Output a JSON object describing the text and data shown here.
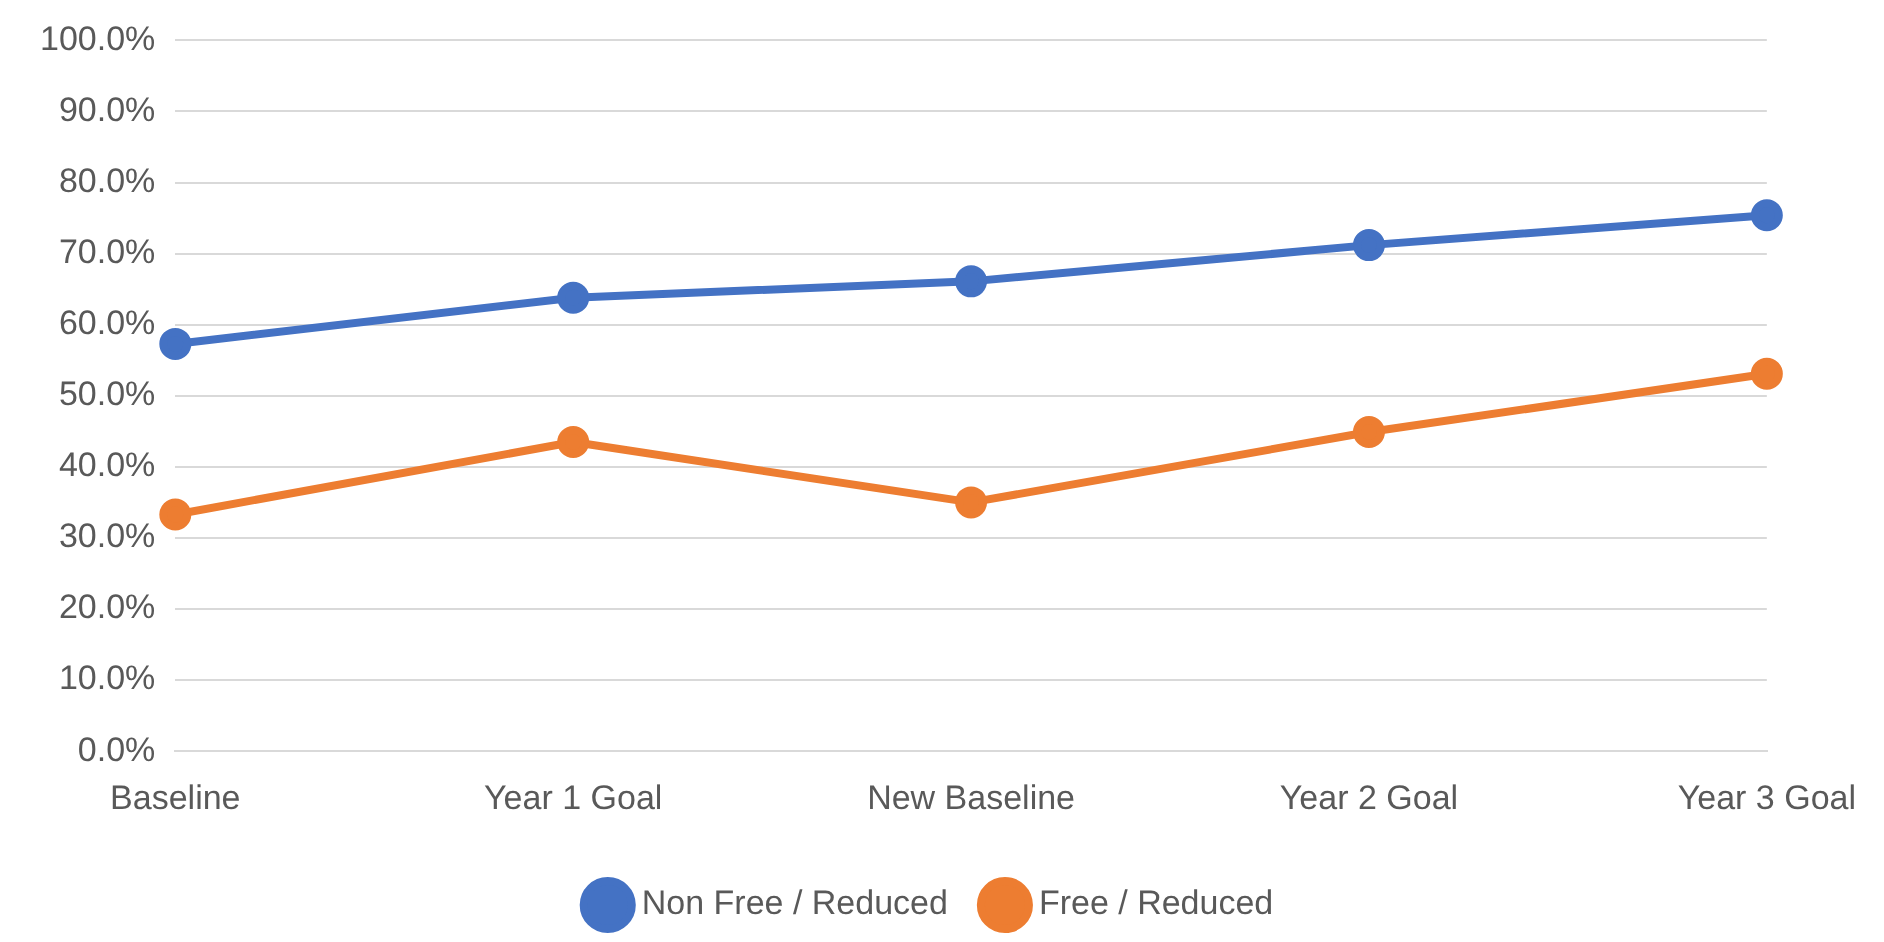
{
  "chart_data": {
    "type": "line",
    "categories": [
      "Baseline",
      "Year 1 Goal",
      "New Baseline",
      "Year 2 Goal",
      "Year 3 Goal"
    ],
    "series": [
      {
        "name": "Non Free / Reduced",
        "color": "#4472c4",
        "values": [
          57.3,
          63.8,
          66.1,
          71.2,
          75.4
        ]
      },
      {
        "name": "Free / Reduced",
        "color": "#ed7d31",
        "values": [
          33.3,
          43.5,
          35.0,
          44.9,
          53.1
        ]
      }
    ],
    "ylim": [
      0,
      100
    ],
    "yticks": [
      {
        "value": 0,
        "label": "0.0%"
      },
      {
        "value": 10,
        "label": "10.0%"
      },
      {
        "value": 20,
        "label": "20.0%"
      },
      {
        "value": 30,
        "label": "30.0%"
      },
      {
        "value": 40,
        "label": "40.0%"
      },
      {
        "value": 50,
        "label": "50.0%"
      },
      {
        "value": 60,
        "label": "60.0%"
      },
      {
        "value": 70,
        "label": "70.0%"
      },
      {
        "value": 80,
        "label": "80.0%"
      },
      {
        "value": 90,
        "label": "90.0%"
      },
      {
        "value": 100,
        "label": "100.0%"
      }
    ],
    "grid": "y",
    "legend": "bottom",
    "marker": "circle",
    "line_style": "solid"
  }
}
